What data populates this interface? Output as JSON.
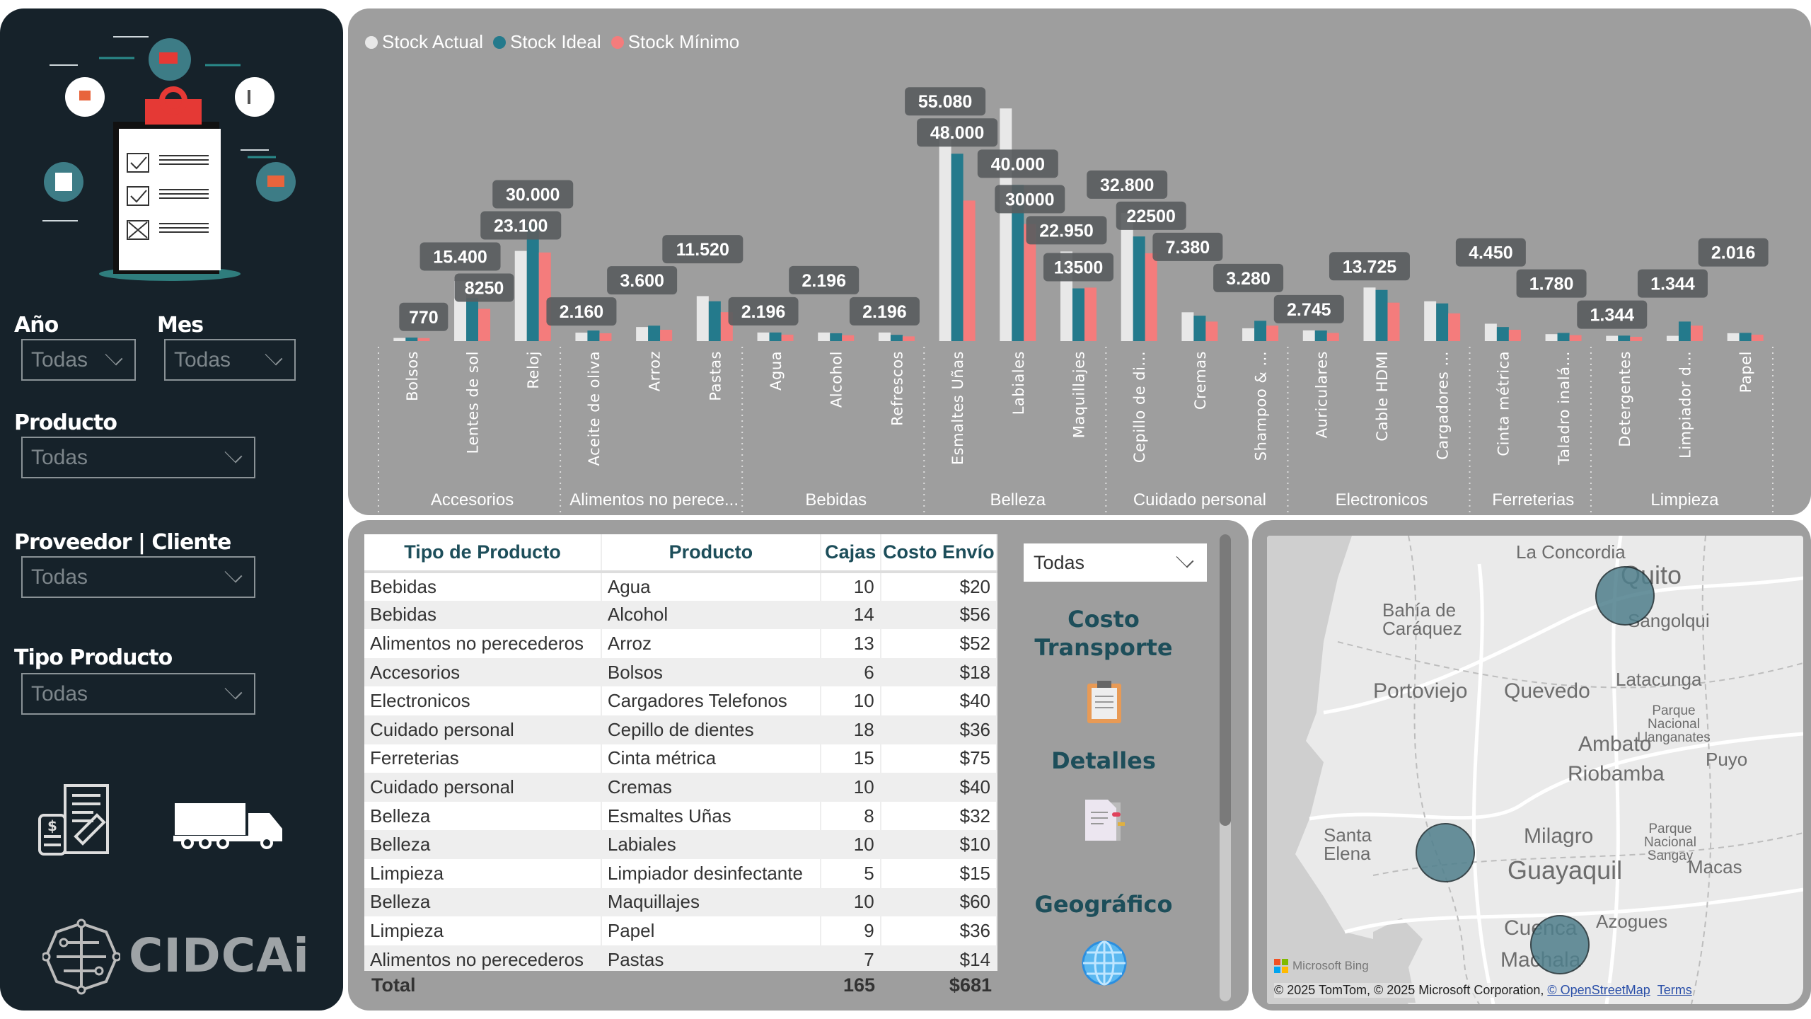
{
  "sidebar": {
    "filters": [
      {
        "label": "Año",
        "value": "Todas"
      },
      {
        "label": "Mes",
        "value": "Todas"
      },
      {
        "label": "Producto",
        "value": "Todas"
      },
      {
        "label": "Proveedor | Cliente",
        "value": "Todas"
      },
      {
        "label": "Tipo Producto",
        "value": "Todas"
      }
    ],
    "logo_text": "CIDCAi"
  },
  "chart_data": {
    "type": "bar",
    "legend": [
      "Stock Actual",
      "Stock Ideal",
      "Stock Mínimo"
    ],
    "legend_position": "top-left",
    "colors": {
      "Stock Actual": "#e8e8e8",
      "Stock Ideal": "#247a8c",
      "Stock Mínimo": "#f47c7c"
    },
    "ylim": [
      0,
      62000
    ],
    "grid": false,
    "groups": [
      {
        "name": "Accesorios",
        "products": [
          {
            "label": "Bolsos",
            "values": [
              800,
              900,
              770
            ],
            "data_labels": [
              {
                "s": 2,
                "text": "770"
              }
            ]
          },
          {
            "label": "Lentes de sol",
            "values": [
              15400,
              11000,
              8250
            ],
            "data_labels": [
              {
                "s": 0,
                "text": "15.400"
              },
              {
                "s": 2,
                "text": "8250"
              }
            ]
          },
          {
            "label": "Reloj",
            "values": [
              23100,
              30000,
              22700
            ],
            "data_labels": [
              {
                "s": 1,
                "text": "30.000"
              },
              {
                "s": 0,
                "text": "23.100"
              }
            ]
          }
        ]
      },
      {
        "name": "Alimentos no perece...",
        "products": [
          {
            "label": "Aceite de oliva",
            "values": [
              2160,
              2700,
              2000
            ],
            "data_labels": [
              {
                "s": 0,
                "text": "2.160"
              }
            ]
          },
          {
            "label": "Arroz",
            "values": [
              3600,
              3950,
              2900
            ],
            "data_labels": [
              {
                "s": 0,
                "text": "3.600"
              }
            ]
          },
          {
            "label": "Pastas",
            "values": [
              11520,
              10200,
              7400
            ],
            "data_labels": [
              {
                "s": 0,
                "text": "11.520"
              }
            ]
          }
        ]
      },
      {
        "name": "Bebidas",
        "products": [
          {
            "label": "Agua",
            "values": [
              2196,
              2200,
              1650
            ],
            "data_labels": [
              {
                "s": 0,
                "text": "2.196"
              }
            ]
          },
          {
            "label": "Alcohol",
            "values": [
              2196,
              2000,
              1500
            ],
            "data_labels": [
              {
                "s": 0,
                "text": "2.196"
              }
            ]
          },
          {
            "label": "Refrescos",
            "values": [
              2196,
              1600,
              1200
            ],
            "data_labels": [
              {
                "s": 0,
                "text": "2.196"
              }
            ]
          }
        ]
      },
      {
        "name": "Belleza",
        "products": [
          {
            "label": "Esmaltes Uñas",
            "values": [
              55080,
              48000,
              36000
            ],
            "data_labels": [
              {
                "s": 0,
                "text": "55.080"
              },
              {
                "s": 1,
                "text": "48.000"
              }
            ]
          },
          {
            "label": "Labiales",
            "values": [
              59600,
              40000,
              30000
            ],
            "data_labels": [
              {
                "s": 1,
                "text": "40.000"
              },
              {
                "s": 2,
                "text": "30000"
              }
            ]
          },
          {
            "label": "Maquillajes",
            "values": [
              22950,
              13500,
              13700
            ],
            "data_labels": [
              {
                "s": 0,
                "text": "22.950"
              },
              {
                "s": 1,
                "text": "13500"
              }
            ]
          }
        ]
      },
      {
        "name": "Cuidado personal",
        "products": [
          {
            "label": "Cepillo de di...",
            "values": [
              32800,
              26800,
              22500
            ],
            "data_labels": [
              {
                "s": 0,
                "text": "32.800"
              },
              {
                "s": 2,
                "text": "22500"
              }
            ]
          },
          {
            "label": "Cremas",
            "values": [
              7380,
              6500,
              5000
            ],
            "data_labels": [
              {
                "s": 0,
                "text": "7.380"
              }
            ]
          },
          {
            "label": "Shampoo & ...",
            "values": [
              3280,
              5200,
              3960
            ],
            "data_labels": [
              {
                "s": 0,
                "text": "3.280"
              }
            ]
          }
        ]
      },
      {
        "name": "Electronicos",
        "products": [
          {
            "label": "Auriculares",
            "values": [
              2745,
              2700,
              2080
            ],
            "data_labels": [
              {
                "s": 0,
                "text": "2.745"
              }
            ]
          },
          {
            "label": "Cable HDMI",
            "values": [
              13725,
              13100,
              9850
            ],
            "data_labels": [
              {
                "s": 0,
                "text": "13.725"
              }
            ]
          },
          {
            "label": "Cargadores ...",
            "values": [
              10200,
              9650,
              7100
            ],
            "data_labels": []
          }
        ]
      },
      {
        "name": "Ferreterias",
        "products": [
          {
            "label": "Cinta métrica",
            "values": [
              4450,
              3600,
              2900
            ],
            "data_labels": [
              {
                "s": 0,
                "text": "4.450"
              }
            ]
          },
          {
            "label": "Taladro inalá...",
            "values": [
              1780,
              2080,
              1530
            ],
            "data_labels": [
              {
                "s": 0,
                "text": "1.780"
              }
            ]
          }
        ]
      },
      {
        "name": "Limpieza",
        "products": [
          {
            "label": "Detergentes",
            "values": [
              1344,
              1400,
              1100
            ],
            "data_labels": [
              {
                "s": 0,
                "text": "1.344"
              }
            ]
          },
          {
            "label": "Limpiador d...",
            "values": [
              1344,
              5000,
              3960
            ],
            "data_labels": [
              {
                "s": 0,
                "text": "1.344"
              }
            ]
          },
          {
            "label": "Papel",
            "values": [
              2016,
              2100,
              1650
            ],
            "data_labels": [
              {
                "s": 0,
                "text": "2.016"
              }
            ]
          }
        ]
      }
    ]
  },
  "table": {
    "columns": [
      "Tipo de Producto",
      "Producto",
      "Cajas",
      "Costo Envío"
    ],
    "rows": [
      [
        "Bebidas",
        "Agua",
        "10",
        "$20"
      ],
      [
        "Bebidas",
        "Alcohol",
        "14",
        "$56"
      ],
      [
        "Alimentos no perecederos",
        "Arroz",
        "13",
        "$52"
      ],
      [
        "Accesorios",
        "Bolsos",
        "6",
        "$18"
      ],
      [
        "Electronicos",
        "Cargadores Telefonos",
        "10",
        "$40"
      ],
      [
        "Cuidado personal",
        "Cepillo de dientes",
        "18",
        "$36"
      ],
      [
        "Ferreterias",
        "Cinta métrica",
        "15",
        "$75"
      ],
      [
        "Cuidado personal",
        "Cremas",
        "10",
        "$40"
      ],
      [
        "Belleza",
        "Esmaltes Uñas",
        "8",
        "$32"
      ],
      [
        "Belleza",
        "Labiales",
        "10",
        "$10"
      ],
      [
        "Limpieza",
        "Limpiador desinfectante",
        "5",
        "$15"
      ],
      [
        "Belleza",
        "Maquillajes",
        "10",
        "$60"
      ],
      [
        "Limpieza",
        "Papel",
        "9",
        "$36"
      ],
      [
        "Alimentos no perecederos",
        "Pastas",
        "7",
        "$14"
      ]
    ],
    "total": {
      "label": "Total",
      "cajas": "165",
      "costo": "$681"
    }
  },
  "nav": {
    "dropdown_value": "Todas",
    "costo_transporte": [
      "Costo",
      "Transporte"
    ],
    "detalles": "Detalles",
    "geografico": "Geográfico"
  },
  "map": {
    "cities": [
      "La Concordia",
      "Quito",
      "Bahía de Caráquez",
      "Sangolqui",
      "Portoviejo",
      "Quevedo",
      "Latacunga",
      "Parque Nacional Llanganates",
      "Ambato",
      "Puyo",
      "Riobamba",
      "Santa Elena",
      "Milagro",
      "Parque Nacional Sangay",
      "Macas",
      "Guayaquil",
      "Azogues",
      "Cuenca",
      "Machala"
    ],
    "bubbles": [
      "Quito",
      "Guayaquil",
      "Cuenca"
    ],
    "bubble_color": "#4f7f8c",
    "brand": "Microsoft Bing",
    "attribution": "© 2025 TomTom, © 2025 Microsoft Corporation,",
    "osm_link": "© OpenStreetMap",
    "terms_link": "Terms"
  }
}
